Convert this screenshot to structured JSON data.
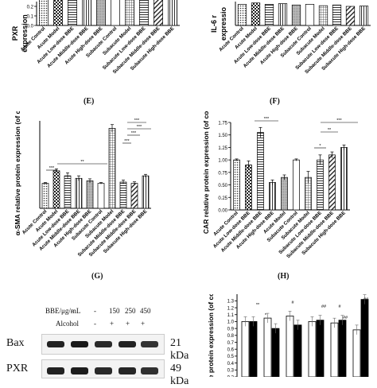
{
  "panel_labels": [
    "(E)",
    "(F)",
    "(G)",
    "(H)"
  ],
  "chart_data": [
    {
      "id": "pxr-top-left",
      "type": "bar",
      "ylabel": "PXR relative protein expression",
      "ylabel_visible": "PXR",
      "ylabel2_visible": "expression",
      "yticks": [
        "0.2",
        "0.1",
        "0.0"
      ],
      "categories": [
        "Acute Control",
        "Acute Model",
        "Acute Low-dose BBE",
        "Acute Middle-dose BBE",
        "Acute High-dose BBE",
        "Subacute Control",
        "Subacute Model",
        "Subacute Low-dose BBE",
        "Subacute Middle-dose BBE",
        "Subacute High-dose BBE"
      ],
      "values": [
        0.55,
        0.5,
        0.6,
        0.52,
        0.4,
        0.48,
        0.38,
        0.62,
        0.55,
        0.58
      ]
    },
    {
      "id": "il6-top-right",
      "type": "bar",
      "ylabel": "IL-6 relative protein expression",
      "ylabel_visible": "IL-6 r",
      "ylabel2_visible": "expressio",
      "categories": [
        "Acute Control",
        "Acute Model",
        "Acute Low-dose BBE",
        "Acute Middle-dose BBE",
        "Acute High-dose BBE",
        "Subacute Control",
        "Subacute Model",
        "Subacute Low-dose BBE",
        "Subacute Middle-dose BBE",
        "Subacute High-dose BBE"
      ],
      "values": [
        0.62,
        0.66,
        0.62,
        0.64,
        0.6,
        0.62,
        0.58,
        0.6,
        0.56,
        0.57
      ]
    },
    {
      "id": "asma-g",
      "type": "bar",
      "title": "",
      "ylabel": "α-SMA relative protein expression (of control)",
      "ylim": [
        0,
        3.5
      ],
      "categories": [
        "Acute Control",
        "Acute Model",
        "Acute Low-dose BBE",
        "Acute Middle-dose BBE",
        "Acute High-dose BBE",
        "Subacute Control",
        "Subacute Model",
        "Subacute Middle-dose BBE",
        "Subacute Middle-dose BBE",
        "Subacute High-dose BBE"
      ],
      "values": [
        1.0,
        1.5,
        1.3,
        1.2,
        1.1,
        1.0,
        3.2,
        1.05,
        1.0,
        1.3
      ],
      "errors": [
        0.03,
        0.08,
        0.12,
        0.1,
        0.08,
        0.03,
        0.15,
        0.08,
        0.06,
        0.06
      ],
      "annotations": [
        "***",
        "**",
        "***",
        "***",
        "***",
        "***"
      ]
    },
    {
      "id": "car-h",
      "type": "bar",
      "ylabel": "CAR relative protein expression (of control)",
      "ylim": [
        0,
        1.75
      ],
      "yticks": [
        "1.75",
        "1.50",
        "1.25",
        "1.00",
        "0.75",
        "0.50",
        "0.25",
        "0.00"
      ],
      "categories": [
        "Acute Control",
        "Acute Low-dose BBE",
        "Acute Middle-dose BBE",
        "Acute High-dose BBE",
        "Acute Model",
        "Subacute Control",
        "Subacute Model",
        "Subacute Low-dose BBE",
        "Subacute Middle-dose BBE",
        "Subacute High-dose BBE"
      ],
      "values": [
        1.0,
        0.9,
        1.55,
        0.55,
        0.65,
        1.0,
        0.65,
        1.0,
        1.1,
        1.25
      ],
      "errors": [
        0.02,
        0.08,
        0.1,
        0.05,
        0.05,
        0.02,
        0.12,
        0.1,
        0.06,
        0.05
      ],
      "annotations": [
        "***",
        "*",
        "**",
        "***"
      ]
    },
    {
      "id": "bottom-right",
      "type": "bar",
      "ylabel": "Relative protein expression (of control)",
      "ylim": [
        0,
        1.3
      ],
      "yticks": [
        "1.3",
        "1.2",
        "1.1",
        "1.0",
        "0.9",
        "0.8",
        "0.7",
        "0.6",
        "0.5",
        "0.4",
        "0.3",
        "0.2"
      ],
      "series": [
        {
          "values": [
            1.0,
            1.05,
            1.08,
            1.0,
            0.98,
            0.88
          ]
        },
        {
          "values": [
            1.0,
            0.9,
            0.95,
            1.02,
            1.02,
            1.32
          ]
        }
      ],
      "annotations": [
        "**",
        "*",
        "#",
        "##",
        "#",
        "##",
        "##"
      ]
    }
  ],
  "panel_g_label": "(G)",
  "panel_h_label": "(H)",
  "blot": {
    "conc_label": "BBE/μg/mL",
    "alcohol_label": "Alcohol",
    "conc_values": [
      "-",
      "-",
      "150",
      "250",
      "450"
    ],
    "alcohol_values": [
      "-",
      "+",
      "+",
      "+",
      "+"
    ],
    "rows": [
      {
        "name": "Bax",
        "kda": "21 kDa"
      },
      {
        "name": "PXR",
        "kda": "49 kDa"
      }
    ]
  }
}
